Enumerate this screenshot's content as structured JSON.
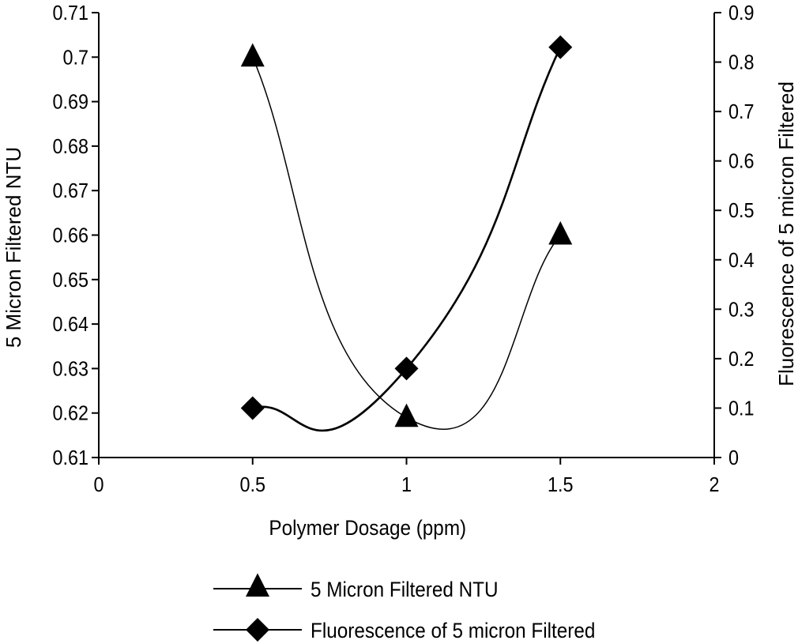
{
  "chart_data": {
    "type": "line",
    "xlabel": "Polymer Dosage (ppm)",
    "ylabel_left": "5 Micron Filtered NTU",
    "ylabel_right": "Fluorescence of 5 micron Filtered",
    "xlim": [
      0,
      2
    ],
    "ylim_left": [
      0.61,
      0.71
    ],
    "ylim_right": [
      0,
      0.9
    ],
    "xticks": [
      "0",
      "0.5",
      "1",
      "1.5",
      "2"
    ],
    "yticks_left": [
      "0.61",
      "0.62",
      "0.63",
      "0.64",
      "0.65",
      "0.66",
      "0.67",
      "0.68",
      "0.69",
      "0.7",
      "0.71"
    ],
    "yticks_right": [
      "0",
      "0.1",
      "0.2",
      "0.3",
      "0.4",
      "0.5",
      "0.6",
      "0.7",
      "0.8",
      "0.9"
    ],
    "grid": false,
    "legend_position": "bottom",
    "series": [
      {
        "name": "5 Micron Filtered NTU",
        "axis": "left",
        "marker": "triangle",
        "x": [
          0.5,
          1,
          1.5
        ],
        "y": [
          0.7,
          0.619,
          0.66
        ]
      },
      {
        "name": "Fluorescence of 5 micron Filtered",
        "axis": "right",
        "marker": "diamond",
        "x": [
          0.5,
          1,
          1.5
        ],
        "y": [
          0.1,
          0.18,
          0.83
        ]
      }
    ]
  }
}
